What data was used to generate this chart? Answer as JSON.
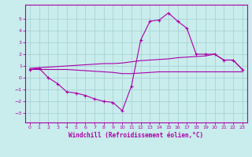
{
  "xlabel": "Windchill (Refroidissement éolien,°C)",
  "xlim": [
    -0.5,
    23.5
  ],
  "ylim": [
    -3.8,
    6.2
  ],
  "yticks": [
    -3,
    -2,
    -1,
    0,
    1,
    2,
    3,
    4,
    5
  ],
  "xticks": [
    0,
    1,
    2,
    3,
    4,
    5,
    6,
    7,
    8,
    9,
    10,
    11,
    12,
    13,
    14,
    15,
    16,
    17,
    18,
    19,
    20,
    21,
    22,
    23
  ],
  "bg_color": "#c9ecec",
  "grid_color": "#a8d4d4",
  "line_color": "#aa00aa",
  "line1_x": [
    0,
    1,
    2,
    3,
    4,
    5,
    6,
    7,
    8,
    9,
    10,
    11,
    12,
    13,
    14,
    15,
    16,
    17,
    18,
    19,
    20,
    21,
    22,
    23
  ],
  "line1_y": [
    0.7,
    0.8,
    0.0,
    -0.5,
    -1.2,
    -1.3,
    -1.5,
    -1.8,
    -2.0,
    -2.1,
    -2.8,
    -0.7,
    3.2,
    4.8,
    4.9,
    5.5,
    4.8,
    4.2,
    2.0,
    2.0,
    2.0,
    1.5,
    1.5,
    0.7
  ],
  "line2_x": [
    0,
    1,
    2,
    3,
    4,
    5,
    6,
    7,
    8,
    9,
    10,
    11,
    12,
    13,
    14,
    15,
    16,
    17,
    18,
    19,
    20,
    21,
    22,
    23
  ],
  "line2_y": [
    0.8,
    0.85,
    0.9,
    0.95,
    1.0,
    1.05,
    1.1,
    1.15,
    1.2,
    1.2,
    1.25,
    1.35,
    1.45,
    1.5,
    1.55,
    1.6,
    1.7,
    1.75,
    1.8,
    1.85,
    2.0,
    1.5,
    1.5,
    0.7
  ],
  "line3_x": [
    0,
    1,
    2,
    3,
    4,
    5,
    6,
    7,
    8,
    9,
    10,
    11,
    12,
    13,
    14,
    15,
    16,
    17,
    18,
    19,
    20,
    21,
    22,
    23
  ],
  "line3_y": [
    0.7,
    0.7,
    0.7,
    0.7,
    0.7,
    0.65,
    0.6,
    0.55,
    0.5,
    0.45,
    0.35,
    0.35,
    0.4,
    0.45,
    0.5,
    0.5,
    0.5,
    0.5,
    0.5,
    0.5,
    0.5,
    0.5,
    0.5,
    0.5
  ]
}
